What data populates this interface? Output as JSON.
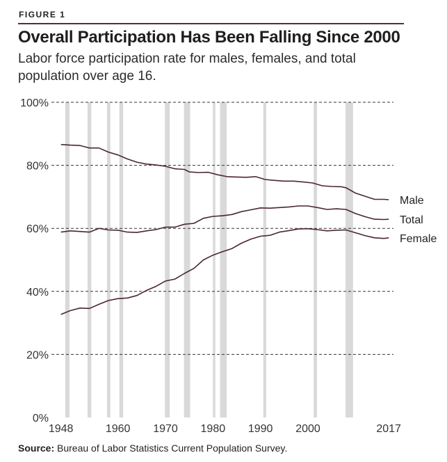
{
  "figure": {
    "label": "FIGURE 1",
    "title": "Overall Participation Has Been Falling Since 2000",
    "subtitle": "Labor force participation rate for males, females, and total population over age 16.",
    "source_label": "Source:",
    "source_text": " Bureau of Labor Statistics Current Population Survey.",
    "accent_color": "#5a2a3c"
  },
  "chart_data": {
    "type": "line",
    "xlim": [
      1946,
      2018
    ],
    "ylim": [
      0,
      100
    ],
    "x_ticks": [
      {
        "value": 1948,
        "label": "1948"
      },
      {
        "value": 1960,
        "label": "1960"
      },
      {
        "value": 1970,
        "label": "1970"
      },
      {
        "value": 1980,
        "label": "1980"
      },
      {
        "value": 1990,
        "label": "1990"
      },
      {
        "value": 2000,
        "label": "2000"
      },
      {
        "value": 2017,
        "label": "2017"
      }
    ],
    "y_ticks": [
      {
        "value": 100,
        "label": "100%"
      },
      {
        "value": 80,
        "label": "80%"
      },
      {
        "value": 60,
        "label": "60%"
      },
      {
        "value": 40,
        "label": "40%"
      },
      {
        "value": 20,
        "label": "20%"
      },
      {
        "value": 0,
        "label": "0%"
      }
    ],
    "grid": "horizontal dashed",
    "line_color": "#4a2533",
    "recession_color": "#d9d9d9",
    "recessions": [
      [
        1948.9,
        1949.8
      ],
      [
        1953.6,
        1954.4
      ],
      [
        1957.7,
        1958.4
      ],
      [
        1960.3,
        1961.1
      ],
      [
        1969.9,
        1970.9
      ],
      [
        1973.9,
        1975.2
      ],
      [
        1980.0,
        1980.5
      ],
      [
        1981.5,
        1982.9
      ],
      [
        1990.6,
        1991.2
      ],
      [
        2001.2,
        2001.9
      ],
      [
        2007.9,
        2009.5
      ]
    ],
    "series": [
      {
        "name": "Male",
        "points": [
          [
            1948,
            86.6
          ],
          [
            1950,
            86.4
          ],
          [
            1952,
            86.3
          ],
          [
            1954,
            85.5
          ],
          [
            1956,
            85.5
          ],
          [
            1958,
            84.2
          ],
          [
            1960,
            83.3
          ],
          [
            1962,
            82.0
          ],
          [
            1964,
            81.0
          ],
          [
            1966,
            80.4
          ],
          [
            1968,
            80.1
          ],
          [
            1970,
            79.7
          ],
          [
            1972,
            78.9
          ],
          [
            1974,
            78.7
          ],
          [
            1975,
            77.9
          ],
          [
            1977,
            77.7
          ],
          [
            1979,
            77.8
          ],
          [
            1981,
            77.0
          ],
          [
            1983,
            76.4
          ],
          [
            1985,
            76.3
          ],
          [
            1987,
            76.2
          ],
          [
            1989,
            76.4
          ],
          [
            1991,
            75.5
          ],
          [
            1993,
            75.2
          ],
          [
            1995,
            75.0
          ],
          [
            1997,
            75.0
          ],
          [
            1999,
            74.7
          ],
          [
            2001,
            74.4
          ],
          [
            2003,
            73.5
          ],
          [
            2005,
            73.3
          ],
          [
            2007,
            73.2
          ],
          [
            2008,
            72.9
          ],
          [
            2010,
            71.2
          ],
          [
            2012,
            70.2
          ],
          [
            2014,
            69.2
          ],
          [
            2016,
            69.2
          ],
          [
            2017,
            69.1
          ]
        ]
      },
      {
        "name": "Total",
        "points": [
          [
            1948,
            58.8
          ],
          [
            1950,
            59.2
          ],
          [
            1952,
            59.0
          ],
          [
            1954,
            58.8
          ],
          [
            1956,
            60.0
          ],
          [
            1958,
            59.5
          ],
          [
            1960,
            59.4
          ],
          [
            1962,
            58.8
          ],
          [
            1964,
            58.7
          ],
          [
            1966,
            59.2
          ],
          [
            1968,
            59.6
          ],
          [
            1970,
            60.4
          ],
          [
            1972,
            60.4
          ],
          [
            1974,
            61.3
          ],
          [
            1976,
            61.6
          ],
          [
            1978,
            63.2
          ],
          [
            1980,
            63.8
          ],
          [
            1982,
            64.0
          ],
          [
            1984,
            64.4
          ],
          [
            1986,
            65.3
          ],
          [
            1988,
            65.9
          ],
          [
            1990,
            66.5
          ],
          [
            1992,
            66.4
          ],
          [
            1994,
            66.6
          ],
          [
            1996,
            66.8
          ],
          [
            1998,
            67.1
          ],
          [
            2000,
            67.1
          ],
          [
            2002,
            66.6
          ],
          [
            2004,
            66.0
          ],
          [
            2006,
            66.2
          ],
          [
            2008,
            66.0
          ],
          [
            2010,
            64.7
          ],
          [
            2012,
            63.7
          ],
          [
            2014,
            62.9
          ],
          [
            2016,
            62.8
          ],
          [
            2017,
            62.9
          ]
        ]
      },
      {
        "name": "Female",
        "points": [
          [
            1948,
            32.7
          ],
          [
            1950,
            33.9
          ],
          [
            1952,
            34.7
          ],
          [
            1954,
            34.6
          ],
          [
            1956,
            35.9
          ],
          [
            1958,
            37.1
          ],
          [
            1960,
            37.7
          ],
          [
            1962,
            37.9
          ],
          [
            1964,
            38.7
          ],
          [
            1966,
            40.3
          ],
          [
            1968,
            41.6
          ],
          [
            1970,
            43.3
          ],
          [
            1972,
            43.9
          ],
          [
            1974,
            45.7
          ],
          [
            1976,
            47.3
          ],
          [
            1978,
            50.0
          ],
          [
            1980,
            51.5
          ],
          [
            1982,
            52.6
          ],
          [
            1984,
            53.6
          ],
          [
            1986,
            55.3
          ],
          [
            1988,
            56.6
          ],
          [
            1990,
            57.5
          ],
          [
            1992,
            57.8
          ],
          [
            1994,
            58.8
          ],
          [
            1996,
            59.3
          ],
          [
            1998,
            59.8
          ],
          [
            2000,
            59.9
          ],
          [
            2002,
            59.6
          ],
          [
            2004,
            59.2
          ],
          [
            2006,
            59.4
          ],
          [
            2008,
            59.5
          ],
          [
            2010,
            58.6
          ],
          [
            2012,
            57.7
          ],
          [
            2014,
            57.0
          ],
          [
            2016,
            56.8
          ],
          [
            2017,
            57.0
          ]
        ]
      }
    ]
  }
}
